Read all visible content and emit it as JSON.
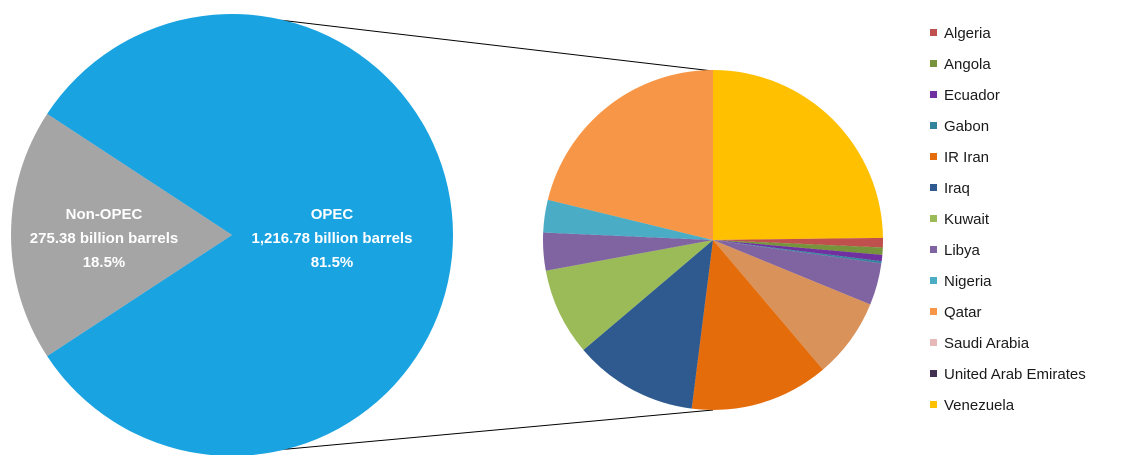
{
  "colors": {
    "background": "#ffffff",
    "opec": "#1aa3e1",
    "non_opec": "#a5a5a5",
    "connector": "#000000",
    "main_label_text": "#ffffff"
  },
  "chart_data": [
    {
      "type": "pie",
      "labels": [
        "OPEC",
        "Non-OPEC"
      ],
      "values": [
        1216.78,
        275.38
      ],
      "shares_percent": [
        81.5,
        18.5
      ],
      "unit": "billion barrels",
      "colors": [
        "#1aa3e1",
        "#a5a5a5"
      ],
      "data_labels": [
        {
          "name": "OPEC",
          "amount": "1,216.78 billion barrels",
          "percent": "81.5%"
        },
        {
          "name": "Non-OPEC",
          "amount": "275.38 billion barrels",
          "percent": "18.5%"
        }
      ]
    },
    {
      "type": "pie",
      "exploded_from": "OPEC",
      "legend_position": "right",
      "categories": [
        "Algeria",
        "Angola",
        "Ecuador",
        "Gabon",
        "IR Iran",
        "Iraq",
        "Kuwait",
        "Libya",
        "Nigeria",
        "Qatar",
        "Saudi Arabia",
        "United Arab Emirates",
        "Venezuela"
      ],
      "values": [
        0.9,
        0.7,
        0.6,
        0.2,
        13.2,
        11.8,
        8.3,
        4.0,
        3.1,
        21.2,
        7.6,
        3.6,
        24.8
      ],
      "colors": [
        "#c0504d",
        "#77933c",
        "#7030a0",
        "#31849b",
        "#e46c0a",
        "#2e5a90",
        "#9bbb59",
        "#8064a2",
        "#4bacc6",
        "#f79646",
        "#e6b9b8",
        "#403151",
        "#ffc000"
      ],
      "slice_order": [
        "Venezuela",
        "Algeria",
        "Angola",
        "Ecuador",
        "Gabon",
        "Libya",
        "Saudi Arabia",
        "IR Iran",
        "Iraq",
        "Kuwait",
        "United Arab Emirates",
        "Nigeria",
        "Qatar"
      ],
      "slice_colors": [
        "#ffc000",
        "#c0504d",
        "#77933c",
        "#7030a0",
        "#31849b",
        "#8064a2",
        "#d9925a",
        "#e46c0a",
        "#2e5a90",
        "#9bbb59",
        "#8064a2",
        "#4bacc6",
        "#f79646"
      ]
    }
  ]
}
